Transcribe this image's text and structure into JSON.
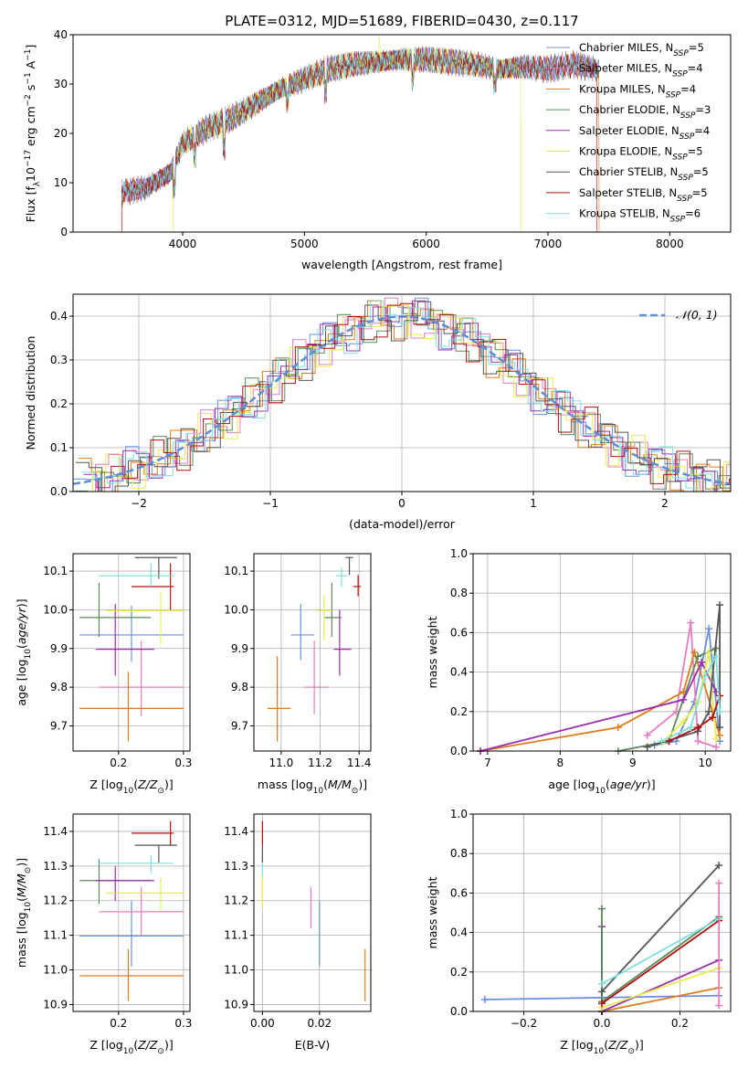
{
  "figure": {
    "title": "PLATE=0312, MJD=51689, FIBERID=0430, z=0.117"
  },
  "colors": {
    "chabrier_miles": "#6b8fe0",
    "salpeter_miles": "#e87bbf",
    "kroupa_miles": "#e07b1a",
    "chabrier_elodie": "#5a8a5a",
    "salpeter_elodie": "#9b30b0",
    "kroupa_elodie": "#e6ef4a",
    "chabrier_stelib": "#555555",
    "salpeter_stelib": "#b01010",
    "kroupa_stelib": "#7fe0e0",
    "gauss": "#5b8fd6"
  },
  "chart_data": [
    {
      "id": "spectrum",
      "type": "line",
      "title": "PLATE=0312, MJD=51689, FIBERID=0430, z=0.117",
      "xlabel": "wavelength [Angstrom, rest frame]",
      "ylabel": "Flux [fλ10⁻¹⁷ erg cm⁻² s⁻¹ A⁻¹]",
      "xlim": [
        3100,
        8500
      ],
      "ylim": [
        0,
        40
      ],
      "xticks": [
        4000,
        5000,
        6000,
        7000,
        8000
      ],
      "yticks": [
        0,
        10,
        20,
        30,
        40
      ],
      "legend_position": "top-right",
      "legend": [
        "Chabrier MILES, NSSP=5",
        "Salpeter MILES, NSSP=4",
        "Kroupa MILES, NSSP=4",
        "Chabrier ELODIE, NSSP=3",
        "Salpeter ELODIE, NSSP=4",
        "Kroupa ELODIE, NSSP=5",
        "Chabrier STELIB, NSSP=5",
        "Salpeter STELIB, NSSP=5",
        "Kroupa STELIB, NSSP=6"
      ],
      "continuum": {
        "x": [
          3500,
          3700,
          3900,
          4000,
          4200,
          4400,
          4600,
          4800,
          5000,
          5200,
          5400,
          5600,
          5800,
          6000,
          6200,
          6400,
          6600,
          6800,
          7000,
          7200,
          7400
        ],
        "y": [
          8,
          9,
          12,
          18,
          21,
          23,
          26,
          29,
          31,
          33,
          34,
          34.5,
          35,
          35,
          34.5,
          34,
          33,
          33.5,
          33,
          34,
          33
        ]
      },
      "cutoffs": {
        "salpeter_stelib": [
          3500,
          7400
        ],
        "kroupa_elodie": [
          3920,
          6780
        ],
        "kroupa_miles": [
          3500,
          7420
        ]
      }
    },
    {
      "id": "residuals",
      "type": "bar",
      "xlabel": "(data-model)/error",
      "ylabel": "Normed distribution",
      "xlim": [
        -2.5,
        2.5
      ],
      "ylim": [
        0,
        0.45
      ],
      "xticks": [
        -2,
        -1,
        0,
        1,
        2
      ],
      "yticks": [
        0.0,
        0.1,
        0.2,
        0.3,
        0.4
      ],
      "legend": [
        "𝒩(0, 1)"
      ],
      "legend_position": "top-right",
      "bin_width": 0.1
    },
    {
      "id": "age_vs_Z",
      "type": "scatter",
      "xlabel": "Z [log10(Z/Z⊙)]",
      "ylabel": "age  [log10(age/yr)]",
      "xlim": [
        0.13,
        0.31
      ],
      "ylim": [
        9.635,
        10.145
      ],
      "xticks": [
        0.2,
        0.3
      ],
      "yticks": [
        9.7,
        9.8,
        9.9,
        10.0,
        10.1
      ],
      "points": [
        {
          "model": "chabrier_miles",
          "x": 0.22,
          "xerr": [
            0.14,
            0.3
          ],
          "y": 9.935,
          "yerr": [
            9.865,
            10.01
          ]
        },
        {
          "model": "salpeter_miles",
          "x": 0.235,
          "xerr": [
            0.17,
            0.3
          ],
          "y": 9.8,
          "yerr": [
            9.725,
            9.92
          ]
        },
        {
          "model": "kroupa_miles",
          "x": 0.215,
          "xerr": [
            0.14,
            0.3
          ],
          "y": 9.745,
          "yerr": [
            9.66,
            9.84
          ]
        },
        {
          "model": "chabrier_elodie",
          "x": 0.17,
          "xerr": [
            0.14,
            0.25
          ],
          "y": 9.98,
          "yerr": [
            9.93,
            10.07
          ]
        },
        {
          "model": "salpeter_elodie",
          "x": 0.195,
          "xerr": [
            0.165,
            0.255
          ],
          "y": 9.898,
          "yerr": [
            9.83,
            10.015
          ]
        },
        {
          "model": "kroupa_elodie",
          "x": 0.265,
          "xerr": [
            0.18,
            0.3
          ],
          "y": 9.998,
          "yerr": [
            9.91,
            10.045
          ]
        },
        {
          "model": "chabrier_stelib",
          "x": 0.262,
          "xerr": [
            0.225,
            0.29
          ],
          "y": 10.135,
          "yerr": [
            10.08,
            10.135
          ]
        },
        {
          "model": "salpeter_stelib",
          "x": 0.28,
          "xerr": [
            0.22,
            0.285
          ],
          "y": 10.06,
          "yerr": [
            10.0,
            10.12
          ]
        },
        {
          "model": "kroupa_stelib",
          "x": 0.25,
          "xerr": [
            0.17,
            0.285
          ],
          "y": 10.088,
          "yerr": [
            10.06,
            10.12
          ]
        }
      ]
    },
    {
      "id": "age_vs_mass",
      "type": "scatter",
      "xlabel": "mass [log10(M/M⊙)]",
      "ylabel": "",
      "xlim": [
        10.86,
        11.46
      ],
      "ylim": [
        9.635,
        10.145
      ],
      "xticks": [
        11.0,
        11.2,
        11.4
      ],
      "yticks": [
        9.7,
        9.8,
        9.9,
        10.0,
        10.1
      ],
      "points": [
        {
          "model": "chabrier_miles",
          "x": 11.1,
          "xerr": [
            11.05,
            11.17
          ],
          "y": 9.935,
          "yerr": [
            9.87,
            10.015
          ]
        },
        {
          "model": "salpeter_miles",
          "x": 11.17,
          "xerr": [
            11.12,
            11.24
          ],
          "y": 9.8,
          "yerr": [
            9.73,
            9.92
          ]
        },
        {
          "model": "kroupa_miles",
          "x": 10.98,
          "xerr": [
            10.93,
            11.05
          ],
          "y": 9.745,
          "yerr": [
            9.66,
            9.88
          ]
        },
        {
          "model": "chabrier_elodie",
          "x": 11.26,
          "xerr": [
            11.22,
            11.31
          ],
          "y": 9.98,
          "yerr": [
            9.93,
            10.07
          ]
        },
        {
          "model": "salpeter_elodie",
          "x": 11.3,
          "xerr": [
            11.27,
            11.36
          ],
          "y": 9.898,
          "yerr": [
            9.83,
            10.0
          ]
        },
        {
          "model": "kroupa_elodie",
          "x": 11.22,
          "xerr": [
            11.18,
            11.26
          ],
          "y": 9.998,
          "yerr": [
            9.92,
            10.04
          ]
        },
        {
          "model": "chabrier_stelib",
          "x": 11.35,
          "xerr": [
            11.33,
            11.37
          ],
          "y": 10.135,
          "yerr": [
            10.09,
            10.135
          ]
        },
        {
          "model": "salpeter_stelib",
          "x": 11.395,
          "xerr": [
            11.37,
            11.41
          ],
          "y": 10.06,
          "yerr": [
            10.035,
            10.09
          ]
        },
        {
          "model": "kroupa_stelib",
          "x": 11.31,
          "xerr": [
            11.28,
            11.34
          ],
          "y": 10.088,
          "yerr": [
            10.06,
            10.11
          ]
        }
      ]
    },
    {
      "id": "weight_vs_age",
      "type": "line",
      "xlabel": "age  [log10(age/yr)]",
      "ylabel": "mass weight",
      "xlim": [
        6.8,
        10.35
      ],
      "ylim": [
        0,
        1
      ],
      "xticks": [
        7,
        8,
        9,
        10
      ],
      "yticks": [
        0.0,
        0.2,
        0.4,
        0.6,
        0.8,
        1.0
      ],
      "series": [
        {
          "model": "chabrier_miles",
          "x": [
            9.3,
            9.6,
            9.85,
            10.05,
            10.2
          ],
          "y": [
            0.03,
            0.05,
            0.25,
            0.62,
            0.05
          ]
        },
        {
          "model": "salpeter_miles",
          "x": [
            9.2,
            9.6,
            9.8,
            9.9,
            10.15
          ],
          "y": [
            0.08,
            0.2,
            0.65,
            0.05,
            0.02
          ]
        },
        {
          "model": "kroupa_miles",
          "x": [
            6.9,
            8.8,
            9.7,
            9.85,
            10.2
          ],
          "y": [
            0.0,
            0.12,
            0.3,
            0.5,
            0.08
          ]
        },
        {
          "model": "chabrier_elodie",
          "x": [
            8.8,
            9.5,
            9.9,
            10.15
          ],
          "y": [
            0.0,
            0.05,
            0.48,
            0.52
          ]
        },
        {
          "model": "salpeter_elodie",
          "x": [
            6.9,
            9.7,
            9.95,
            10.15
          ],
          "y": [
            0.0,
            0.26,
            0.45,
            0.3
          ]
        },
        {
          "model": "kroupa_elodie",
          "x": [
            9.4,
            9.7,
            9.9,
            10.05,
            10.15
          ],
          "y": [
            0.04,
            0.15,
            0.25,
            0.5,
            0.06
          ]
        },
        {
          "model": "chabrier_stelib",
          "x": [
            9.2,
            9.9,
            10.05,
            10.2,
            10.2
          ],
          "y": [
            0.02,
            0.1,
            0.2,
            0.74,
            0.12
          ]
        },
        {
          "model": "salpeter_stelib",
          "x": [
            9.5,
            9.9,
            10.1,
            10.2
          ],
          "y": [
            0.05,
            0.12,
            0.17,
            0.28
          ]
        },
        {
          "model": "kroupa_stelib",
          "x": [
            9.4,
            9.8,
            10.0,
            10.15,
            10.2
          ],
          "y": [
            0.05,
            0.12,
            0.38,
            0.48,
            0.2
          ]
        }
      ]
    },
    {
      "id": "mass_vs_Z",
      "type": "scatter",
      "xlabel": "Z [log10(Z/Z⊙)]",
      "ylabel": "mass [log10(M/M⊙)]",
      "xlim": [
        0.13,
        0.31
      ],
      "ylim": [
        10.88,
        11.45
      ],
      "xticks": [
        0.2,
        0.3
      ],
      "yticks": [
        10.9,
        11.0,
        11.1,
        11.2,
        11.3,
        11.4
      ],
      "points": [
        {
          "model": "chabrier_miles",
          "x": 0.22,
          "xerr": [
            0.14,
            0.3
          ],
          "y": 11.098,
          "yerr": [
            11.01,
            11.2
          ]
        },
        {
          "model": "salpeter_miles",
          "x": 0.235,
          "xerr": [
            0.17,
            0.3
          ],
          "y": 11.168,
          "yerr": [
            11.1,
            11.24
          ]
        },
        {
          "model": "kroupa_miles",
          "x": 0.215,
          "xerr": [
            0.14,
            0.3
          ],
          "y": 10.983,
          "yerr": [
            10.91,
            11.06
          ]
        },
        {
          "model": "chabrier_elodie",
          "x": 0.17,
          "xerr": [
            0.14,
            0.25
          ],
          "y": 11.258,
          "yerr": [
            11.19,
            11.32
          ]
        },
        {
          "model": "salpeter_elodie",
          "x": 0.195,
          "xerr": [
            0.165,
            0.255
          ],
          "y": 11.258,
          "yerr": [
            11.2,
            11.3
          ]
        },
        {
          "model": "kroupa_elodie",
          "x": 0.265,
          "xerr": [
            0.18,
            0.3
          ],
          "y": 11.222,
          "yerr": [
            11.17,
            11.27
          ]
        },
        {
          "model": "chabrier_stelib",
          "x": 0.262,
          "xerr": [
            0.225,
            0.29
          ],
          "y": 11.36,
          "yerr": [
            11.31,
            11.36
          ]
        },
        {
          "model": "salpeter_stelib",
          "x": 0.28,
          "xerr": [
            0.22,
            0.285
          ],
          "y": 11.395,
          "yerr": [
            11.36,
            11.43
          ]
        },
        {
          "model": "kroupa_stelib",
          "x": 0.25,
          "xerr": [
            0.17,
            0.285
          ],
          "y": 11.308,
          "yerr": [
            11.28,
            11.33
          ]
        }
      ]
    },
    {
      "id": "mass_vs_ebv",
      "type": "scatter",
      "xlabel": "E(B-V)",
      "ylabel": "",
      "xlim": [
        -0.003,
        0.038
      ],
      "ylim": [
        10.88,
        11.45
      ],
      "xticks": [
        0.0,
        0.02
      ],
      "yticks": [
        10.9,
        11.0,
        11.1,
        11.2,
        11.3,
        11.4
      ],
      "points": [
        {
          "model": "chabrier_miles",
          "x": 0.02,
          "y": 11.1,
          "yerr": [
            11.01,
            11.2
          ]
        },
        {
          "model": "salpeter_miles",
          "x": 0.017,
          "y": 11.17,
          "yerr": [
            11.12,
            11.24
          ]
        },
        {
          "model": "kroupa_miles",
          "x": 0.036,
          "y": 10.98,
          "yerr": [
            10.91,
            11.06
          ]
        },
        {
          "model": "kroupa_elodie",
          "x": 0.0,
          "y": 11.22,
          "yerr": [
            11.18,
            11.27
          ]
        },
        {
          "model": "kroupa_stelib",
          "x": 0.0,
          "y": 11.31,
          "yerr": [
            11.27,
            11.34
          ]
        },
        {
          "model": "salpeter_stelib",
          "x": 0.0,
          "y": 11.39,
          "yerr": [
            11.36,
            11.43
          ]
        },
        {
          "model": "chabrier_stelib",
          "x": 0.0,
          "y": 11.36,
          "yerr": [
            11.31,
            11.36
          ]
        }
      ]
    },
    {
      "id": "weight_vs_Z",
      "type": "line",
      "xlabel": "Z [log10(Z/Z⊙)]",
      "ylabel": "mass weight",
      "xlim": [
        -0.33,
        0.33
      ],
      "ylim": [
        0,
        1
      ],
      "xticks": [
        -0.2,
        0.0,
        0.2
      ],
      "yticks": [
        0.0,
        0.2,
        0.4,
        0.6,
        0.8,
        1.0
      ],
      "series": [
        {
          "model": "chabrier_miles",
          "x": [
            -0.3,
            0.0,
            0.3
          ],
          "y": [
            0.06,
            0.07,
            0.08
          ]
        },
        {
          "model": "kroupa_miles",
          "x": [
            0.0,
            0.3
          ],
          "y": [
            0.0,
            0.12
          ]
        },
        {
          "model": "salpeter_elodie",
          "x": [
            0.0,
            0.0,
            0.0,
            0.3
          ],
          "y": [
            0.43,
            0.0,
            0.0,
            0.26
          ]
        },
        {
          "model": "chabrier_elodie",
          "x": [
            0.0,
            0.0,
            0.3
          ],
          "y": [
            0.52,
            0.05,
            0.48
          ]
        },
        {
          "model": "kroupa_elodie",
          "x": [
            0.0,
            0.3
          ],
          "y": [
            0.02,
            0.22
          ]
        },
        {
          "model": "chabrier_stelib",
          "x": [
            0.0,
            0.3
          ],
          "y": [
            0.1,
            0.74
          ]
        },
        {
          "model": "salpeter_stelib",
          "x": [
            0.0,
            0.3
          ],
          "y": [
            0.04,
            0.46
          ]
        },
        {
          "model": "kroupa_stelib",
          "x": [
            0.0,
            0.3
          ],
          "y": [
            0.14,
            0.47
          ]
        },
        {
          "model": "salpeter_miles",
          "x": [
            0.3,
            0.3
          ],
          "y": [
            0.03,
            0.65
          ]
        }
      ]
    }
  ]
}
